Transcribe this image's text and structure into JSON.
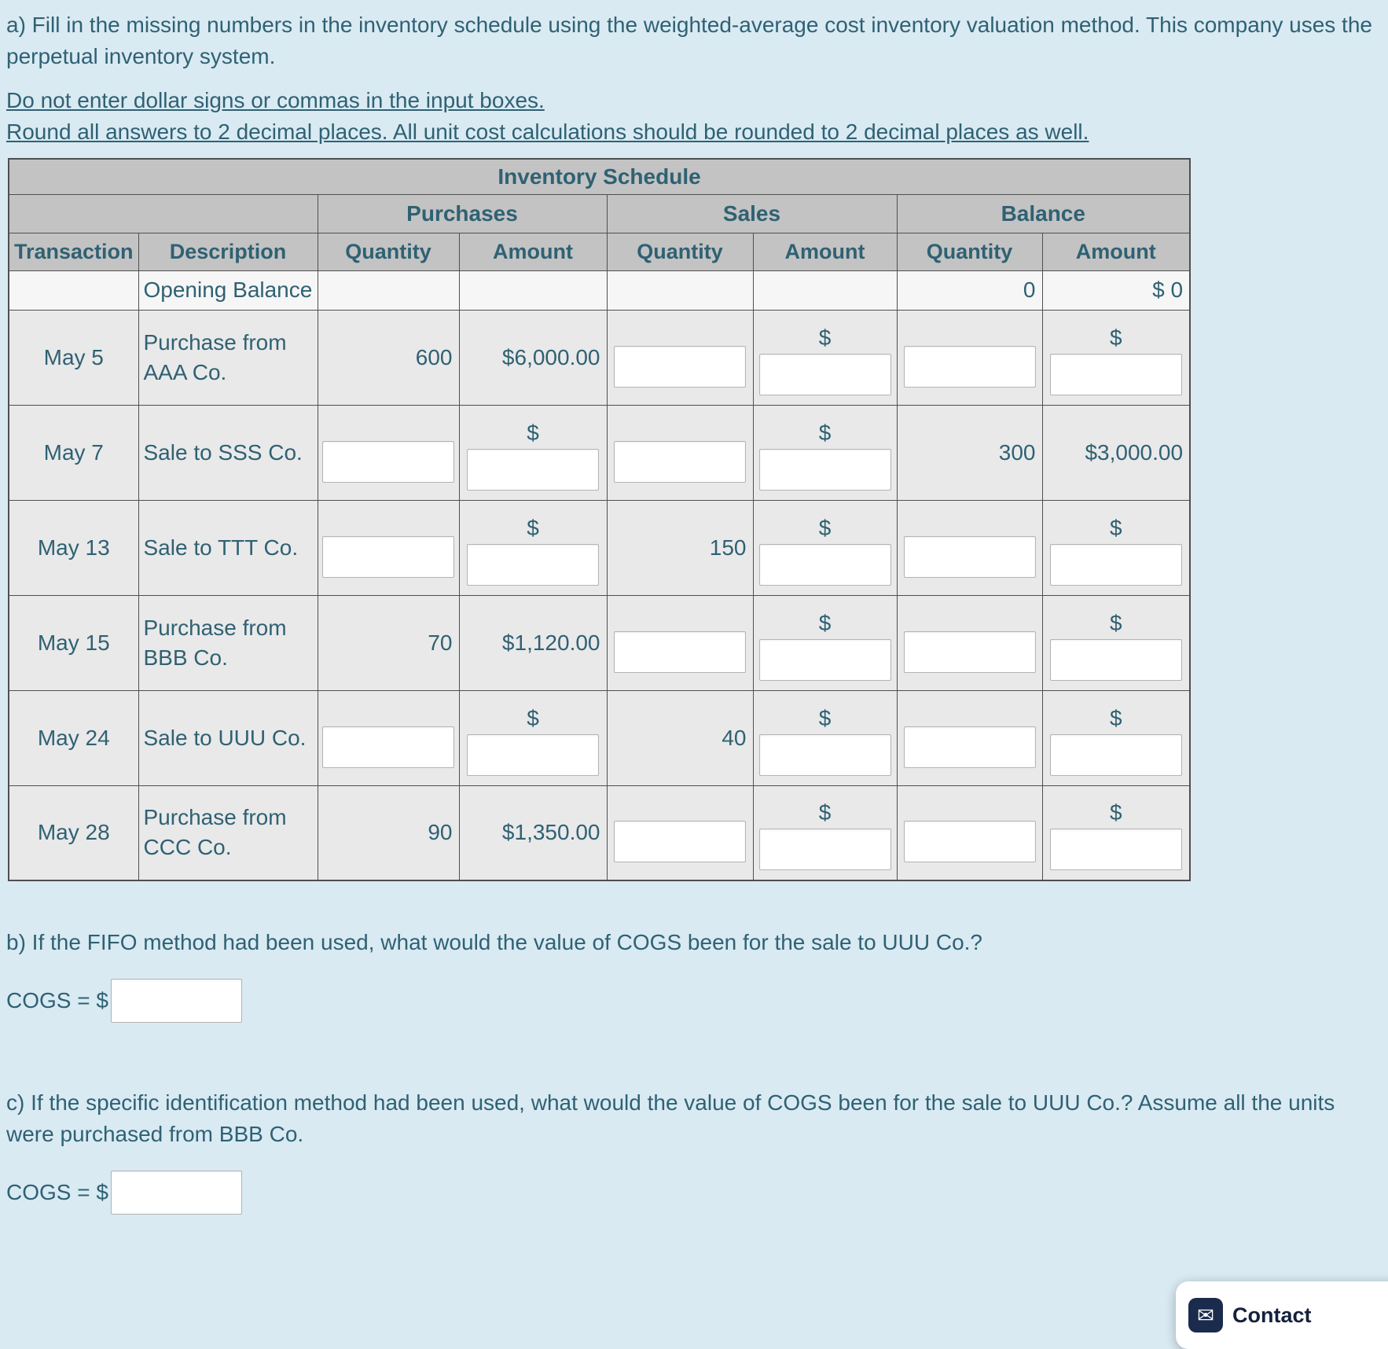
{
  "page": {
    "background": "#d9eaf3",
    "text_color": "#2f6173",
    "header_gray": "#c3c3c3"
  },
  "intro": {
    "part_a": "a) Fill in the missing numbers in the inventory schedule using the weighted-average cost inventory valuation method. This company uses the perpetual inventory system.",
    "note1": "Do not enter dollar signs or commas in the input boxes.",
    "note2": "Round all answers to 2 decimal places. All unit cost calculations should be rounded to 2 decimal places as well."
  },
  "table": {
    "title": "Inventory Schedule",
    "dollar": "$",
    "group_headers": [
      "Purchases",
      "Sales",
      "Balance"
    ],
    "column_headers": [
      "Transaction",
      "Description",
      "Quantity",
      "Amount",
      "Quantity",
      "Amount",
      "Quantity",
      "Amount"
    ],
    "rows": [
      {
        "transaction": "",
        "description": "Opening Balance",
        "opening": true,
        "cells": [
          {
            "type": "empty"
          },
          {
            "type": "empty"
          },
          {
            "type": "empty"
          },
          {
            "type": "empty"
          },
          {
            "type": "text",
            "value": "0"
          },
          {
            "type": "text",
            "value": "$ 0"
          }
        ]
      },
      {
        "transaction": "May 5",
        "description": "Purchase from AAA Co.",
        "cells": [
          {
            "type": "text",
            "value": "600"
          },
          {
            "type": "text",
            "value": "$6,000.00"
          },
          {
            "type": "input"
          },
          {
            "type": "dollar_input"
          },
          {
            "type": "input"
          },
          {
            "type": "dollar_input"
          }
        ]
      },
      {
        "transaction": "May 7",
        "description": "Sale to SSS Co.",
        "cells": [
          {
            "type": "input"
          },
          {
            "type": "dollar_input"
          },
          {
            "type": "input"
          },
          {
            "type": "dollar_input"
          },
          {
            "type": "text",
            "value": "300"
          },
          {
            "type": "text",
            "value": "$3,000.00"
          }
        ]
      },
      {
        "transaction": "May 13",
        "description": "Sale to TTT Co.",
        "cells": [
          {
            "type": "input"
          },
          {
            "type": "dollar_input"
          },
          {
            "type": "text",
            "value": "150"
          },
          {
            "type": "dollar_input"
          },
          {
            "type": "input"
          },
          {
            "type": "dollar_input"
          }
        ]
      },
      {
        "transaction": "May 15",
        "description": "Purchase from BBB Co.",
        "cells": [
          {
            "type": "text",
            "value": "70"
          },
          {
            "type": "text",
            "value": "$1,120.00"
          },
          {
            "type": "input"
          },
          {
            "type": "dollar_input"
          },
          {
            "type": "input"
          },
          {
            "type": "dollar_input"
          }
        ]
      },
      {
        "transaction": "May 24",
        "description": "Sale to UUU Co.",
        "cells": [
          {
            "type": "input"
          },
          {
            "type": "dollar_input"
          },
          {
            "type": "text",
            "value": "40"
          },
          {
            "type": "dollar_input"
          },
          {
            "type": "input"
          },
          {
            "type": "dollar_input"
          }
        ]
      },
      {
        "transaction": "May 28",
        "description": "Purchase from CCC Co.",
        "cells": [
          {
            "type": "text",
            "value": "90"
          },
          {
            "type": "text",
            "value": "$1,350.00"
          },
          {
            "type": "input"
          },
          {
            "type": "dollar_input"
          },
          {
            "type": "input"
          },
          {
            "type": "dollar_input"
          }
        ]
      }
    ]
  },
  "part_b": {
    "question": "b) If the FIFO method had been used, what would the value of COGS been for the sale to UUU Co.?",
    "cogs_label": "COGS = $"
  },
  "part_c": {
    "question": "c) If the specific identification method had been used, what would the value of COGS been for the sale to UUU Co.? Assume all the units were purchased from BBB Co.",
    "cogs_label": "COGS = $"
  },
  "chat": {
    "label": "Contact",
    "icon": "envelope-icon"
  }
}
